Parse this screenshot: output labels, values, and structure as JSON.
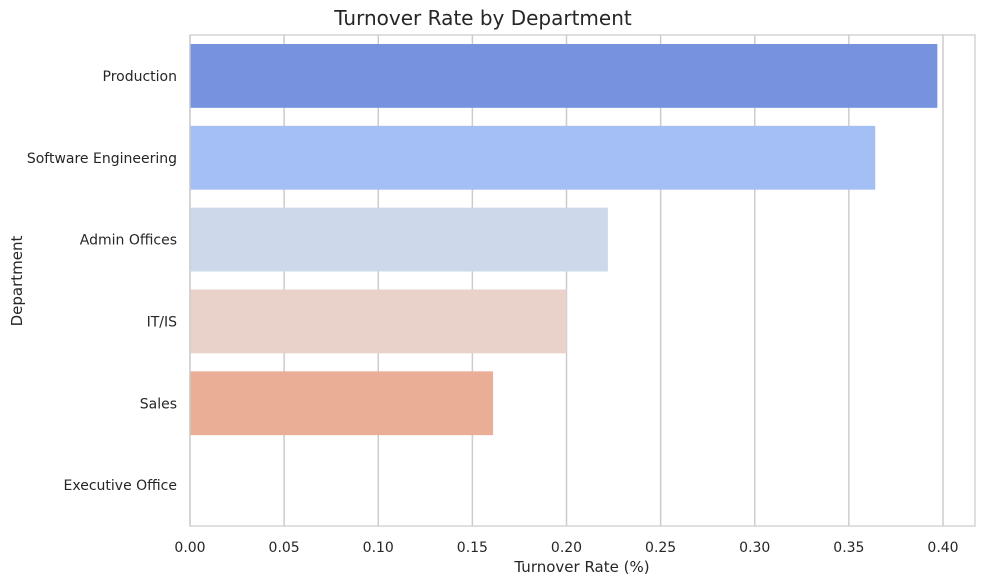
{
  "chart_data": {
    "type": "bar",
    "orientation": "horizontal",
    "title": "Turnover Rate by Department",
    "xlabel": "Turnover Rate (%)",
    "ylabel": "Department",
    "categories": [
      "Production",
      "Software Engineering",
      "Admin Offices",
      "IT/IS",
      "Sales",
      "Executive Office"
    ],
    "values": [
      0.397,
      0.364,
      0.222,
      0.2,
      0.161,
      0.0
    ],
    "colors": [
      "#7793e0",
      "#a4bff3",
      "#cdd9eb",
      "#e8d2c9",
      "#eaae96",
      "#f4a385"
    ],
    "xlim": [
      0,
      0.417
    ],
    "xticks": [
      "0.00",
      "0.05",
      "0.10",
      "0.15",
      "0.20",
      "0.25",
      "0.30",
      "0.35",
      "0.40"
    ],
    "xtick_values": [
      0,
      0.05,
      0.1,
      0.15,
      0.2,
      0.25,
      0.3,
      0.35,
      0.4
    ],
    "grid": true,
    "grid_color": "#cccccc"
  }
}
